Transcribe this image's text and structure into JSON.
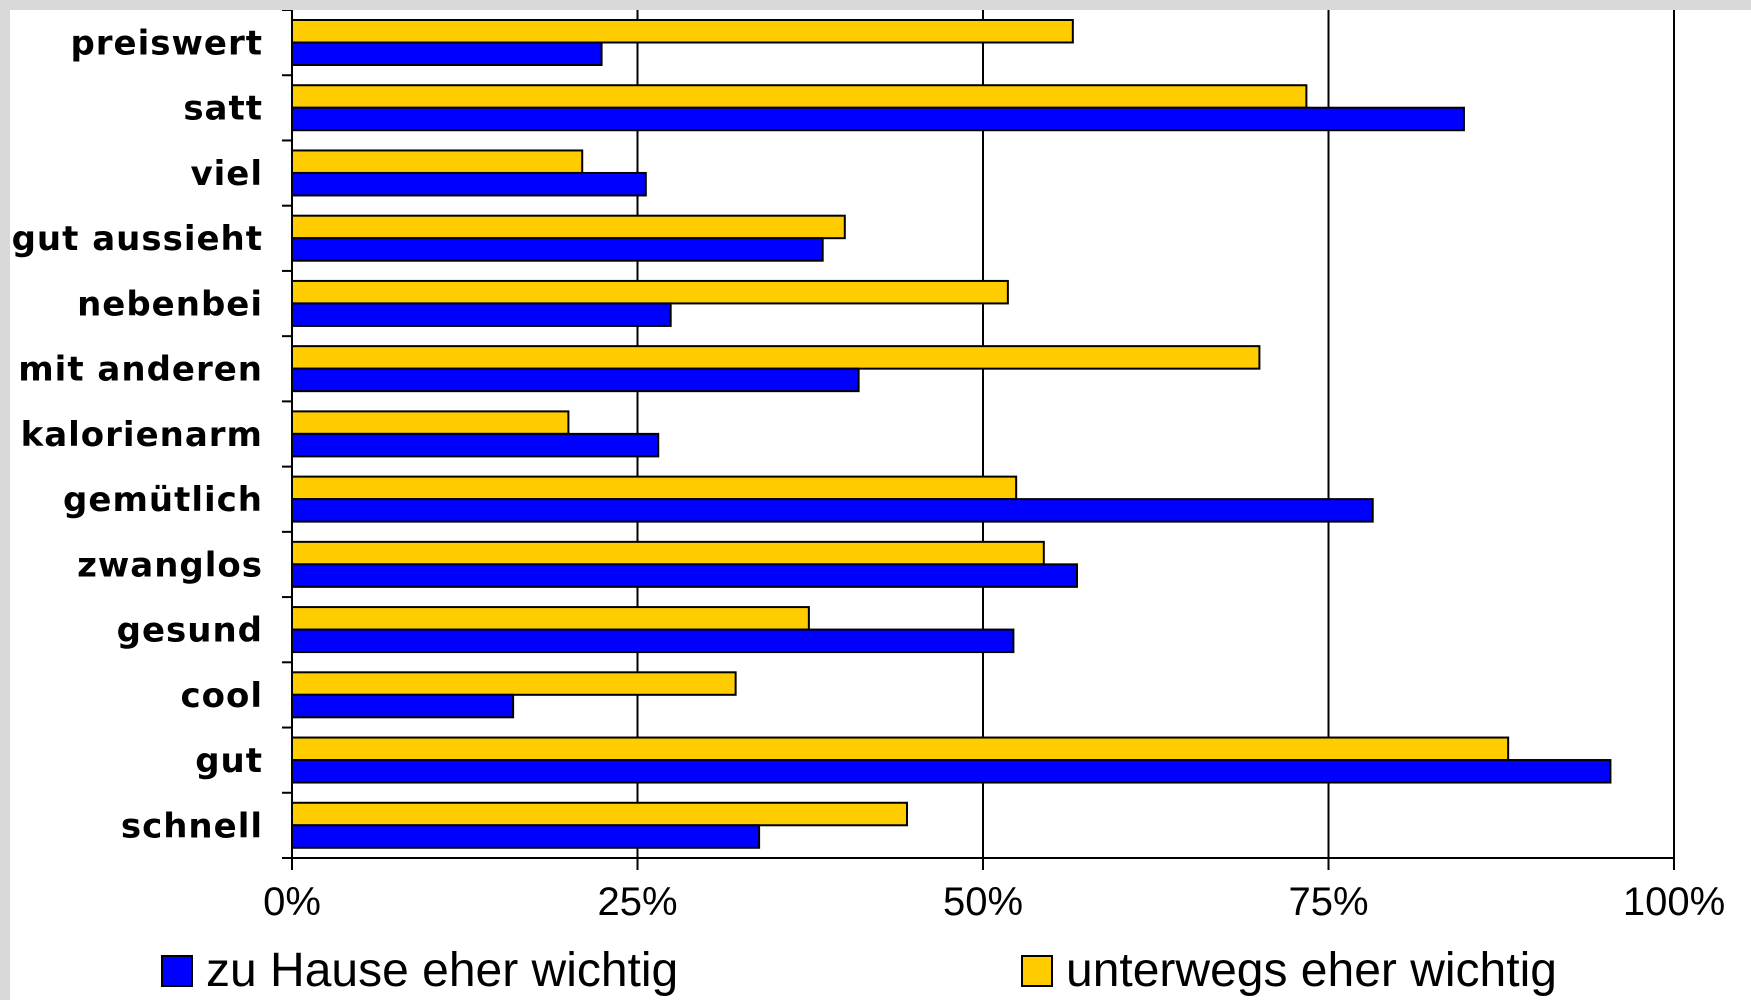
{
  "chart_data": {
    "type": "bar",
    "orientation": "horizontal",
    "categories": [
      "preiswert",
      "satt",
      "viel",
      "gut aussieht",
      "nebenbei",
      "mit anderen",
      "kalorienarm",
      "gemütlich",
      "zwanglos",
      "gesund",
      "cool",
      "gut",
      "schnell"
    ],
    "series": [
      {
        "name": "unterwegs eher wichtig",
        "color": "#ffcc00",
        "values": [
          0.565,
          0.734,
          0.21,
          0.4,
          0.518,
          0.7,
          0.2,
          0.524,
          0.544,
          0.374,
          0.321,
          0.88,
          0.445
        ]
      },
      {
        "name": "zu Hause eher wichtig",
        "color": "#0000ff",
        "values": [
          0.224,
          0.848,
          0.256,
          0.384,
          0.274,
          0.41,
          0.265,
          0.782,
          0.568,
          0.522,
          0.16,
          0.954,
          0.338
        ]
      }
    ],
    "xlim": [
      0,
      1
    ],
    "xticks": [
      "0%",
      "25%",
      "50%",
      "75%",
      "100%"
    ],
    "grid": true,
    "legend": {
      "position": "bottom",
      "items": [
        "zu Hause eher wichtig",
        "unterwegs eher wichtig"
      ]
    },
    "title": "",
    "xlabel": "",
    "ylabel": ""
  }
}
